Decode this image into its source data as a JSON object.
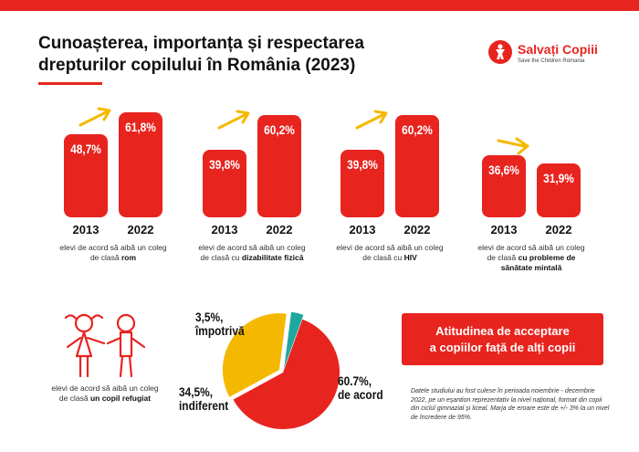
{
  "title": "Cunoașterea, importanța și respectarea drepturilor copilului în România (2023)",
  "logo": {
    "name": "Salvați Copiii",
    "subtitle": "Save the Children Romania"
  },
  "colors": {
    "accent": "#e8241f",
    "arrow": "#f5b800",
    "indifferent": "#f5b800",
    "against": "#1fa8a0"
  },
  "chart_data": [
    {
      "type": "bar",
      "categories": [
        "2013",
        "2022"
      ],
      "values": [
        48.7,
        61.8
      ],
      "labels": [
        "48,7%",
        "61,8%"
      ],
      "caption": "elevi de acord să aibă un coleg de clasă",
      "caption_bold": "rom"
    },
    {
      "type": "bar",
      "categories": [
        "2013",
        "2022"
      ],
      "values": [
        39.8,
        60.2
      ],
      "labels": [
        "39,8%",
        "60,2%"
      ],
      "caption": "elevi de acord să aibă un coleg de clasă cu",
      "caption_bold": "dizabilitate fizică"
    },
    {
      "type": "bar",
      "categories": [
        "2013",
        "2022"
      ],
      "values": [
        39.8,
        60.2
      ],
      "labels": [
        "39,8%",
        "60,2%"
      ],
      "caption": "elevi de acord să aibă un coleg de clasă cu",
      "caption_bold": "HIV"
    },
    {
      "type": "bar",
      "categories": [
        "2013",
        "2022"
      ],
      "values": [
        36.6,
        31.9
      ],
      "labels": [
        "36,6%",
        "31,9%"
      ],
      "caption": "elevi de acord să aibă un coleg de clasă",
      "caption_bold": "cu probleme de sănătate mintală"
    },
    {
      "type": "pie",
      "slices": [
        {
          "value": 60.7,
          "label": "60.7%,",
          "sublabel": "de acord",
          "color": "#e8241f"
        },
        {
          "value": 34.5,
          "label": "34,5%,",
          "sublabel": "indiferent",
          "color": "#f5b800"
        },
        {
          "value": 3.5,
          "label": "3,5%,",
          "sublabel": "împotrivă",
          "color": "#1fa8a0"
        }
      ],
      "caption": "elevi de acord să aibă un coleg de clasă",
      "caption_bold": "un copil refugiat"
    }
  ],
  "box": {
    "line1": "Atitudinea de acceptare",
    "line2": "a copiilor față de alți copii"
  },
  "note": "Datele studiului au fost culese în perioada noiembrie - decembrie 2022, pe un eșantion reprezentativ la nivel național, format din copii din ciclul gimnazial și liceal. Marja de eroare este de +/- 3% la un nivel de încredere de 95%."
}
